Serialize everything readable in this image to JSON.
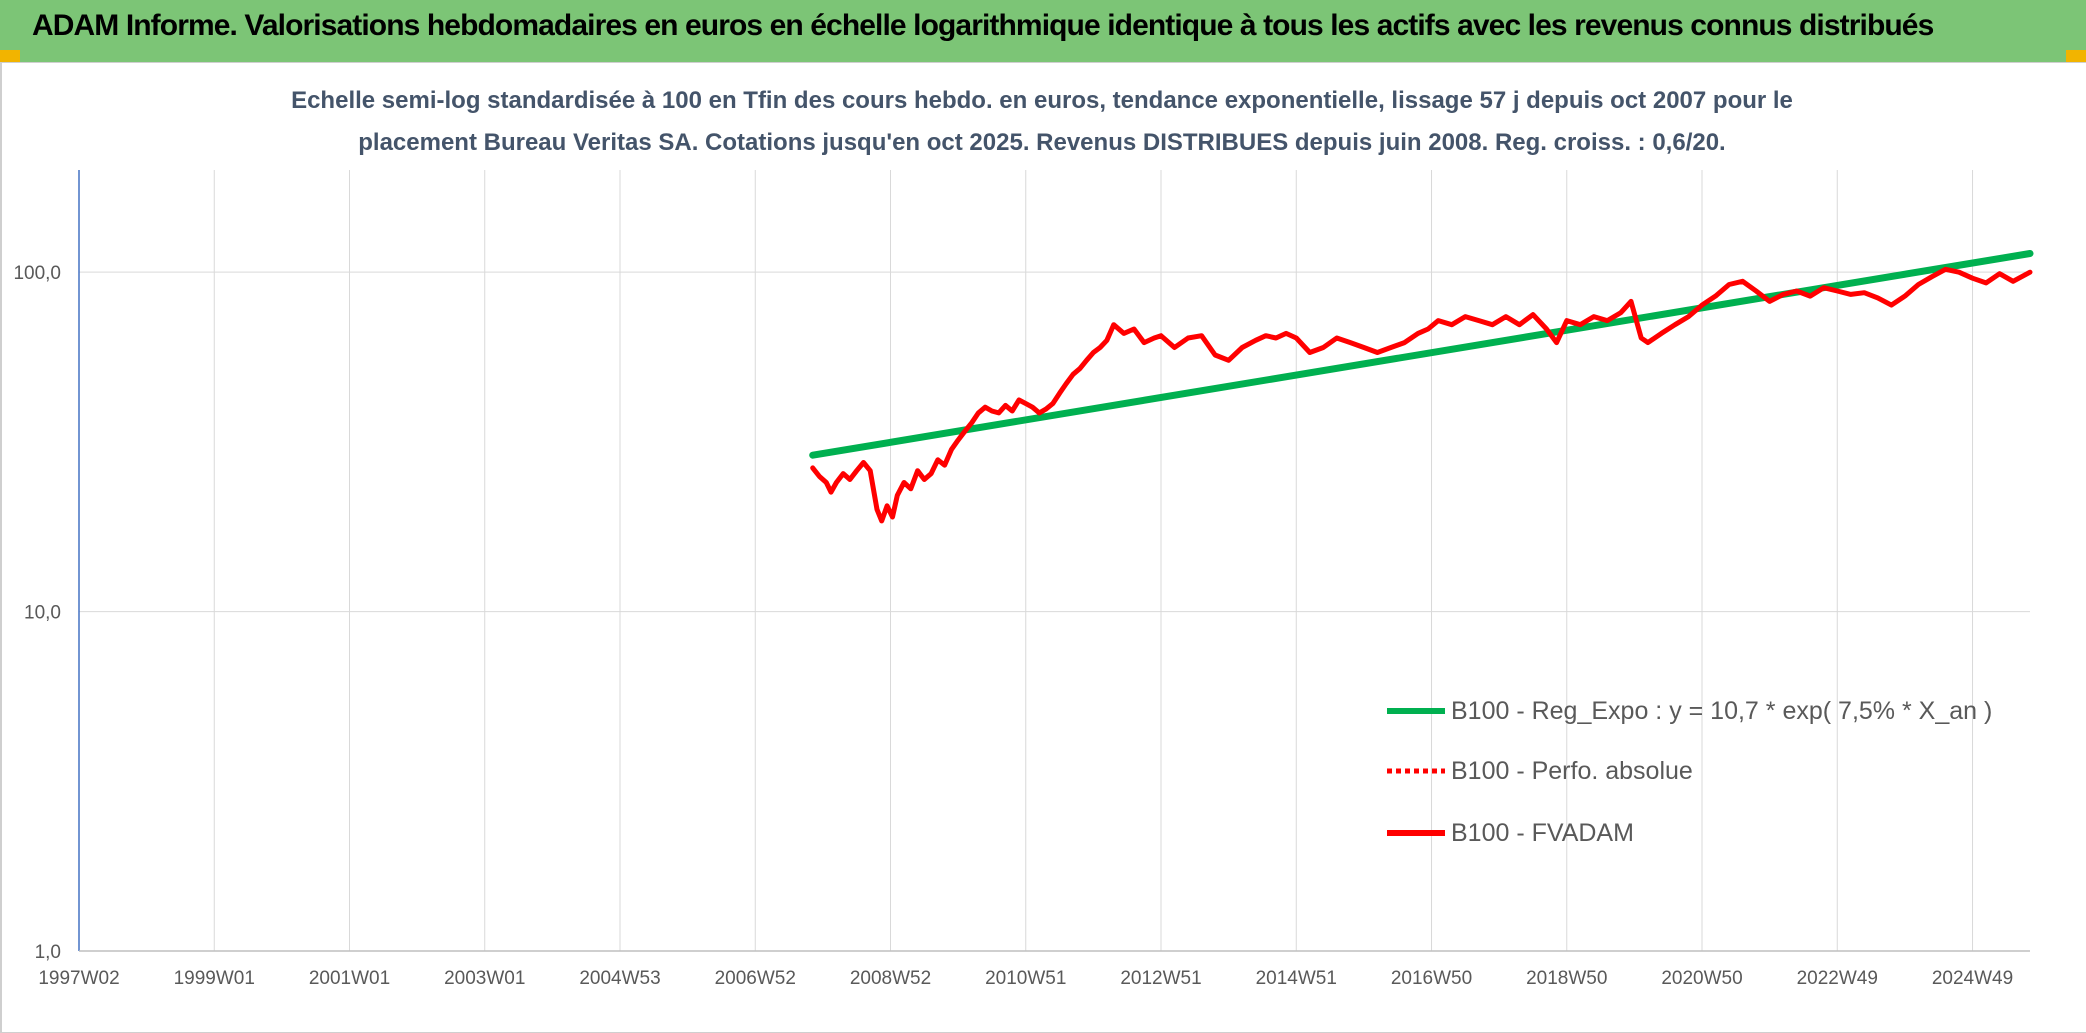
{
  "banner": {
    "title": "ADAM Informe. Valorisations hebdomadaires en euros en échelle logarithmique identique à tous les actifs avec les revenus connus distribués",
    "background": "#7cc576",
    "corner_color": "#f2b400"
  },
  "chart_data": {
    "type": "line",
    "title_lines": [
      "Echelle semi-log standardisée à 100 en Tfin des cours hebdo. en euros, tendance exponentielle, lissage 57 j depuis oct 2007 pour le",
      "placement Bureau Veritas SA. Cotations jusqu'en oct 2025. Revenus DISTRIBUES depuis juin 2008. Reg. croiss. : 0,6/20."
    ],
    "y_scale": "log",
    "ylim": [
      1,
      200
    ],
    "y_ticks": [
      {
        "value": 1,
        "label": "1,0"
      },
      {
        "value": 10,
        "label": "10,0"
      },
      {
        "value": 100,
        "label": "100,0"
      }
    ],
    "x_range": [
      1997.0,
      2025.85
    ],
    "x_ticks": [
      {
        "label": "1997W02",
        "value": 1997.0
      },
      {
        "label": "1999W01",
        "value": 1999.0
      },
      {
        "label": "2001W01",
        "value": 2001.0
      },
      {
        "label": "2003W01",
        "value": 2003.0
      },
      {
        "label": "2004W53",
        "value": 2005.0
      },
      {
        "label": "2006W52",
        "value": 2007.0
      },
      {
        "label": "2008W52",
        "value": 2009.0
      },
      {
        "label": "2010W51",
        "value": 2011.0
      },
      {
        "label": "2012W51",
        "value": 2013.0
      },
      {
        "label": "2014W51",
        "value": 2015.0
      },
      {
        "label": "2016W50",
        "value": 2017.0
      },
      {
        "label": "2018W50",
        "value": 2019.0
      },
      {
        "label": "2020W50",
        "value": 2021.0
      },
      {
        "label": "2022W49",
        "value": 2023.0
      },
      {
        "label": "2024W49",
        "value": 2025.0
      }
    ],
    "grid": "vertical and horizontal",
    "legend_position": "bottom-right",
    "series": [
      {
        "name": "B100 - Reg_Expo : y = 10,7 * exp( 7,5% *  X_an )",
        "color": "#00b050",
        "style": "solid",
        "x": [
          2007.85,
          2025.85
        ],
        "y": [
          28.9,
          113.5
        ]
      },
      {
        "name": "B100 - Perfo. absolue",
        "color": "#ff0000",
        "style": "dotted",
        "x": [],
        "y": []
      },
      {
        "name": "B100 - FVADAM",
        "color": "#ff0000",
        "style": "solid",
        "x": [
          2007.85,
          2007.95,
          2008.05,
          2008.12,
          2008.2,
          2008.3,
          2008.4,
          2008.5,
          2008.6,
          2008.7,
          2008.8,
          2008.87,
          2008.95,
          2009.03,
          2009.1,
          2009.2,
          2009.3,
          2009.4,
          2009.5,
          2009.6,
          2009.7,
          2009.8,
          2009.9,
          2010.0,
          2010.1,
          2010.2,
          2010.3,
          2010.4,
          2010.5,
          2010.6,
          2010.7,
          2010.8,
          2010.9,
          2011.0,
          2011.1,
          2011.2,
          2011.3,
          2011.4,
          2011.5,
          2011.6,
          2011.7,
          2011.8,
          2011.9,
          2012.0,
          2012.1,
          2012.2,
          2012.3,
          2012.45,
          2012.6,
          2012.75,
          2012.9,
          2013.0,
          2013.2,
          2013.4,
          2013.6,
          2013.8,
          2014.0,
          2014.2,
          2014.4,
          2014.55,
          2014.7,
          2014.85,
          2015.0,
          2015.2,
          2015.4,
          2015.6,
          2015.8,
          2016.0,
          2016.2,
          2016.4,
          2016.6,
          2016.8,
          2016.95,
          2017.1,
          2017.3,
          2017.5,
          2017.7,
          2017.9,
          2018.1,
          2018.3,
          2018.5,
          2018.7,
          2018.85,
          2019.0,
          2019.2,
          2019.4,
          2019.6,
          2019.8,
          2019.95,
          2020.1,
          2020.2,
          2020.4,
          2020.6,
          2020.8,
          2021.0,
          2021.2,
          2021.4,
          2021.6,
          2021.8,
          2022.0,
          2022.2,
          2022.4,
          2022.6,
          2022.8,
          2023.0,
          2023.2,
          2023.4,
          2023.6,
          2023.8,
          2024.0,
          2024.2,
          2024.4,
          2024.6,
          2024.8,
          2025.0,
          2025.2,
          2025.4,
          2025.6,
          2025.85
        ],
        "y": [
          26.5,
          25.0,
          24.0,
          22.5,
          24.0,
          25.5,
          24.5,
          26.0,
          27.5,
          26.0,
          20.0,
          18.5,
          20.5,
          19.0,
          22.0,
          24.0,
          23.0,
          26.0,
          24.5,
          25.5,
          28.0,
          27.0,
          30.0,
          32.0,
          34.0,
          36.0,
          38.5,
          40.0,
          39.0,
          38.5,
          40.5,
          39.0,
          42.0,
          41.0,
          40.0,
          38.5,
          39.5,
          41.0,
          44.0,
          47.0,
          50.0,
          52.0,
          55.0,
          58.0,
          60.0,
          63.0,
          70.0,
          66.0,
          68.0,
          62.0,
          64.0,
          65.0,
          60.0,
          64.0,
          65.0,
          57.0,
          55.0,
          60.0,
          63.0,
          65.0,
          64.0,
          66.0,
          64.0,
          58.0,
          60.0,
          64.0,
          62.0,
          60.0,
          58.0,
          60.0,
          62.0,
          66.0,
          68.0,
          72.0,
          70.0,
          74.0,
          72.0,
          70.0,
          74.0,
          70.0,
          75.0,
          68.0,
          62.0,
          72.0,
          70.0,
          74.0,
          72.0,
          76.0,
          82.0,
          64.0,
          62.0,
          66.0,
          70.0,
          74.0,
          80.0,
          85.0,
          92.0,
          94.0,
          88.0,
          82.0,
          86.0,
          88.0,
          85.0,
          90.0,
          88.0,
          86.0,
          87.0,
          84.0,
          80.0,
          85.0,
          92.0,
          97.0,
          102.0,
          100.0,
          96.0,
          93.0,
          99.0,
          94.0,
          100.0
        ]
      }
    ]
  }
}
